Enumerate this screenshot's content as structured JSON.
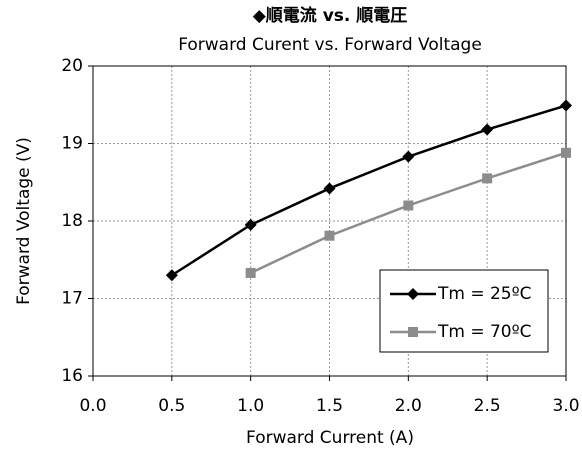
{
  "chart_data": {
    "type": "line",
    "title": "◆順電流 vs. 順電圧",
    "subtitle": "Forward Curent vs. Forward Voltage",
    "x_label": "Forward Current (A)",
    "y_label": "Forward Voltage (V)",
    "xlim": [
      0,
      3
    ],
    "xticks": [
      {
        "value": 0,
        "label": "0.0"
      },
      0.5,
      {
        "value": 1,
        "label": "1.0"
      },
      1.5,
      {
        "value": 2,
        "label": "2.0"
      },
      2.5,
      {
        "value": 3,
        "label": "3.0"
      }
    ],
    "ylim": [
      16,
      20
    ],
    "yticks": [
      16,
      17,
      18,
      19,
      20
    ],
    "grid": true,
    "legend": "lower-right",
    "series": [
      {
        "name": "Tm = 25ºC",
        "color": "#000000",
        "marker": "diamond",
        "x": [
          0.5,
          1,
          1.5,
          2,
          2.5,
          3
        ],
        "values": [
          17.3,
          17.95,
          18.42,
          18.83,
          19.18,
          19.49
        ]
      },
      {
        "name": "Tm = 70ºC",
        "color": "#8c8c8c",
        "marker": "square",
        "x": [
          1,
          1.5,
          2,
          2.5,
          3
        ],
        "values": [
          17.33,
          17.81,
          18.2,
          18.55,
          18.88
        ]
      }
    ]
  }
}
